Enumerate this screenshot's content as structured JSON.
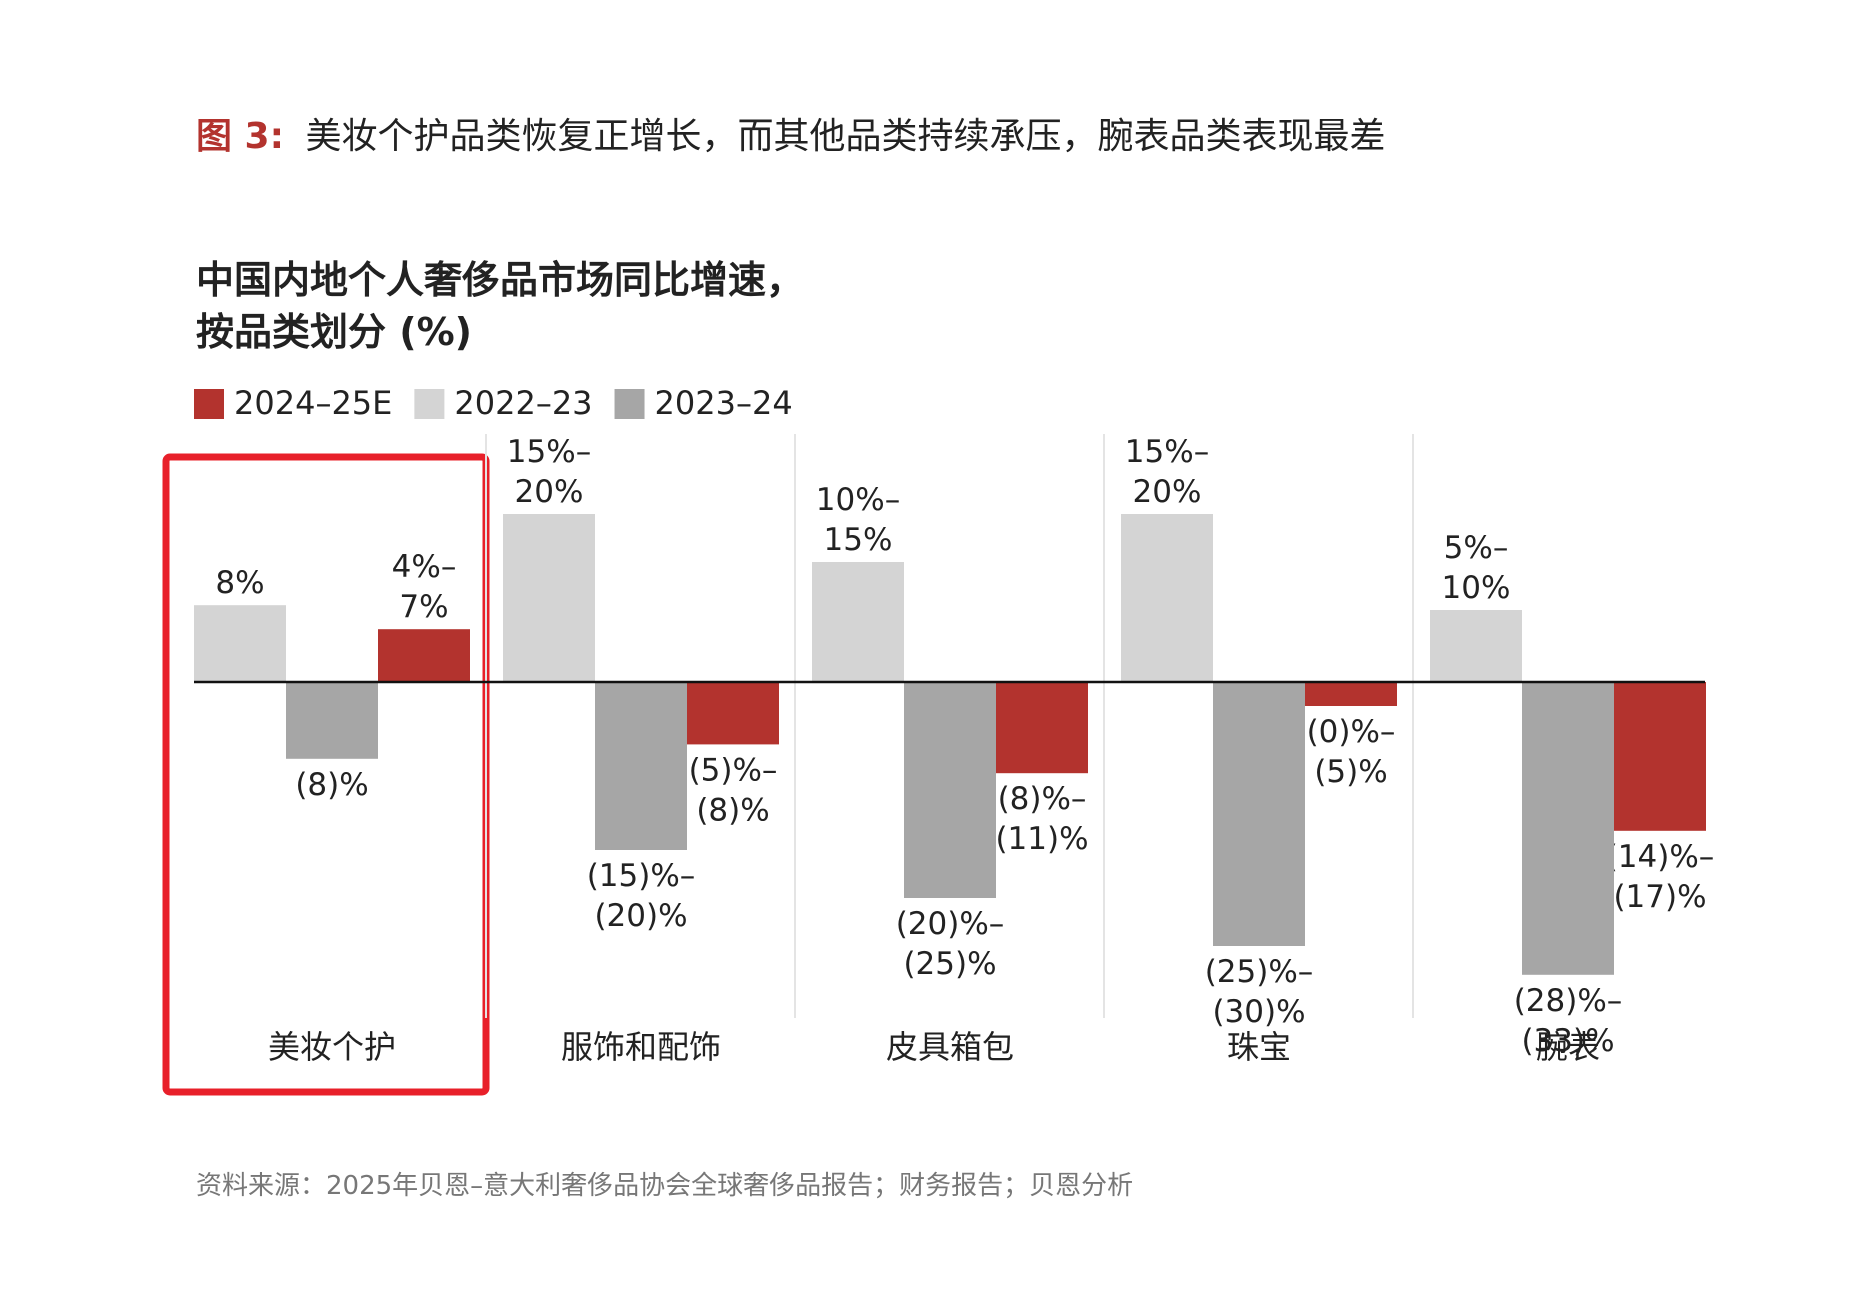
{
  "figure_label": "图 3:",
  "headline": "美妆个护品类恢复正增长，而其他品类持续承压，腕表品类表现最差",
  "chart_data": {
    "type": "bar",
    "title": [
      "中国内地个人奢侈品市场同比增速，",
      "按品类划分 (%)"
    ],
    "categories": [
      "美妆个护",
      "服饰和配饰",
      "皮具箱包",
      "珠宝",
      "腕表"
    ],
    "series": [
      {
        "name": "2024–25E",
        "color": "#b3332e",
        "values": [
          5.5,
          -6.5,
          -9.5,
          -2.5,
          -15.5
        ],
        "value_labels": [
          "4%–7%",
          "(5)%–(8)%",
          "(8)%–(11)%",
          "(0)%–(5)%",
          "(14)%–(17)%"
        ]
      },
      {
        "name": "2022–23",
        "color": "#d4d4d4",
        "values": [
          8,
          17.5,
          12.5,
          17.5,
          7.5
        ],
        "value_labels": [
          "8%",
          "15%–20%",
          "10%–15%",
          "15%–20%",
          "5%–10%"
        ]
      },
      {
        "name": "2023–24",
        "color": "#a6a6a6",
        "values": [
          -8,
          -17.5,
          -22.5,
          -27.5,
          -30.5
        ],
        "value_labels": [
          "(8)%",
          "(15)%–(20)%",
          "(20)%–(25)%",
          "(25)%–(30)%",
          "(28)%–(33)%"
        ]
      }
    ],
    "legend": "top-left"
  },
  "source": "资料来源：2025年贝恩–意大利奢侈品协会全球奢侈品报告；财务报告；贝恩分析"
}
